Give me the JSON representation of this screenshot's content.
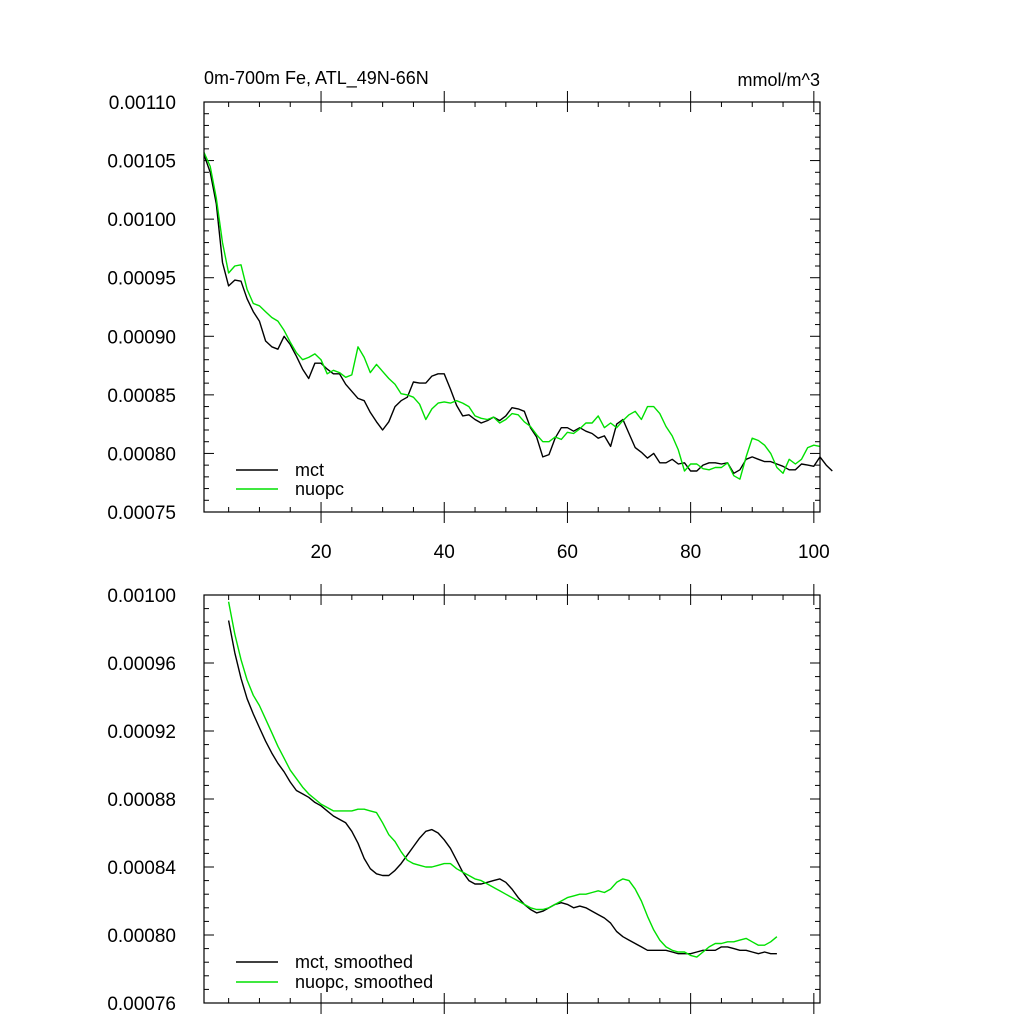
{
  "chart_data": [
    {
      "type": "line",
      "title": "0m-700m Fe, ATL_49N-66N",
      "units": "mmol/m^3",
      "xlabel": "",
      "ylabel": "",
      "xlim": [
        1,
        101
      ],
      "ylim": [
        0.00075,
        0.0011
      ],
      "x_ticks": [
        20,
        40,
        60,
        80,
        100
      ],
      "x_tick_labels": [
        "20",
        "40",
        "60",
        "80",
        "100"
      ],
      "y_ticks": [
        0.00075,
        0.0008,
        0.00085,
        0.0009,
        0.00095,
        0.001,
        0.00105,
        0.0011
      ],
      "y_tick_labels": [
        "0.00075",
        "0.00080",
        "0.00085",
        "0.00090",
        "0.00095",
        "0.00100",
        "0.00105",
        "0.00110"
      ],
      "legend_position": "bottom-left",
      "series": [
        {
          "name": "mct",
          "color": "#000000",
          "x_start": 1,
          "values": [
            0.001055,
            0.00104,
            0.001013,
            0.000963,
            0.000943,
            0.000948,
            0.000947,
            0.000932,
            0.000921,
            0.000913,
            0.000896,
            0.000891,
            0.000889,
            0.0009,
            0.000893,
            0.000883,
            0.000872,
            0.000864,
            0.000877,
            0.000877,
            0.000872,
            0.000868,
            0.000868,
            0.000859,
            0.000853,
            0.000847,
            0.000845,
            0.000835,
            0.000827,
            0.00082,
            0.000827,
            0.00084,
            0.000845,
            0.000848,
            0.000861,
            0.00086,
            0.00086,
            0.000866,
            0.000868,
            0.000868,
            0.000855,
            0.000841,
            0.000832,
            0.000833,
            0.000829,
            0.000826,
            0.000828,
            0.000831,
            0.000828,
            0.000832,
            0.000839,
            0.000838,
            0.000836,
            0.000822,
            0.000814,
            0.000797,
            0.000799,
            0.000813,
            0.000822,
            0.000822,
            0.000819,
            0.000822,
            0.000819,
            0.000817,
            0.000813,
            0.000815,
            0.000806,
            0.000825,
            0.000829,
            0.000817,
            0.000805,
            0.000801,
            0.000796,
            0.0008,
            0.000792,
            0.000792,
            0.000795,
            0.000791,
            0.000792,
            0.000785,
            0.000785,
            0.00079,
            0.000792,
            0.000792,
            0.000791,
            0.000792,
            0.000783,
            0.000786,
            0.000795,
            0.000797,
            0.000795,
            0.000793,
            0.000793,
            0.000791,
            0.000789,
            0.000786,
            0.000786,
            0.000791,
            0.00079,
            0.000789,
            0.000797,
            0.00079,
            0.000785
          ]
        },
        {
          "name": "nuopc",
          "color": "#00e000",
          "x_start": 1,
          "values": [
            0.001057,
            0.001045,
            0.001018,
            0.00098,
            0.000954,
            0.00096,
            0.000961,
            0.00094,
            0.000928,
            0.000926,
            0.000921,
            0.000916,
            0.000913,
            0.000905,
            0.000895,
            0.000886,
            0.00088,
            0.000882,
            0.000885,
            0.00088,
            0.000868,
            0.000871,
            0.000869,
            0.000865,
            0.000867,
            0.000891,
            0.000882,
            0.000869,
            0.000876,
            0.00087,
            0.000864,
            0.000859,
            0.000851,
            0.00085,
            0.000848,
            0.000842,
            0.000829,
            0.000838,
            0.000843,
            0.000844,
            0.000843,
            0.000845,
            0.000843,
            0.00084,
            0.000832,
            0.00083,
            0.000829,
            0.000831,
            0.000826,
            0.000829,
            0.000834,
            0.000833,
            0.000827,
            0.000823,
            0.000816,
            0.00081,
            0.00081,
            0.000814,
            0.000812,
            0.000818,
            0.000817,
            0.000821,
            0.000826,
            0.000826,
            0.000832,
            0.000822,
            0.000826,
            0.000822,
            0.000828,
            0.000833,
            0.000836,
            0.000829,
            0.00084,
            0.00084,
            0.000834,
            0.000823,
            0.000815,
            0.000803,
            0.000785,
            0.000791,
            0.000791,
            0.000787,
            0.000786,
            0.000788,
            0.000788,
            0.000792,
            0.000781,
            0.000778,
            0.000797,
            0.000813,
            0.000811,
            0.000807,
            0.0008,
            0.000788,
            0.000783,
            0.000795,
            0.000791,
            0.000795,
            0.000805,
            0.000807,
            0.000806
          ]
        }
      ]
    },
    {
      "type": "line",
      "title": "",
      "xlabel": "",
      "ylabel": "",
      "xlim": [
        1,
        101
      ],
      "ylim": [
        0.00076,
        0.001
      ],
      "x_ticks": [
        20,
        40,
        60,
        80,
        100
      ],
      "y_ticks": [
        0.00076,
        0.0008,
        0.00084,
        0.00088,
        0.00092,
        0.00096,
        0.001
      ],
      "y_tick_labels": [
        "0.00076",
        "0.00080",
        "0.00084",
        "0.00088",
        "0.00092",
        "0.00096",
        "0.00100"
      ],
      "legend_position": "bottom-left",
      "series": [
        {
          "name": "mct, smoothed",
          "color": "#000000",
          "x_start": 5,
          "values": [
            0.000985,
            0.000966,
            0.000951,
            0.000939,
            0.00093,
            0.000922,
            0.000914,
            0.000907,
            0.000901,
            0.000896,
            0.00089,
            0.000885,
            0.000883,
            0.000881,
            0.000878,
            0.000876,
            0.000873,
            0.00087,
            0.000868,
            0.000866,
            0.000861,
            0.000854,
            0.000845,
            0.000839,
            0.000836,
            0.000835,
            0.000835,
            0.000838,
            0.000842,
            0.000847,
            0.000852,
            0.000857,
            0.000861,
            0.000862,
            0.00086,
            0.000856,
            0.000851,
            0.000844,
            0.000837,
            0.000832,
            0.00083,
            0.00083,
            0.000831,
            0.000832,
            0.000833,
            0.000831,
            0.000827,
            0.000822,
            0.000818,
            0.000815,
            0.000813,
            0.000814,
            0.000816,
            0.000818,
            0.000819,
            0.000818,
            0.000816,
            0.000817,
            0.000816,
            0.000814,
            0.000812,
            0.00081,
            0.000807,
            0.000802,
            0.000799,
            0.000797,
            0.000795,
            0.000793,
            0.000791,
            0.000791,
            0.000791,
            0.000791,
            0.00079,
            0.000789,
            0.000789,
            0.000789,
            0.00079,
            0.000791,
            0.000791,
            0.000791,
            0.000793,
            0.000793,
            0.000792,
            0.000791,
            0.000791,
            0.00079,
            0.000789,
            0.00079,
            0.000789,
            0.000789
          ]
        },
        {
          "name": "nuopc, smoothed",
          "color": "#00e000",
          "x_start": 5,
          "values": [
            0.000996,
            0.000977,
            0.000962,
            0.00095,
            0.000941,
            0.000935,
            0.000927,
            0.000919,
            0.000911,
            0.000904,
            0.000897,
            0.000892,
            0.000887,
            0.000883,
            0.00088,
            0.000877,
            0.000875,
            0.000873,
            0.000873,
            0.000873,
            0.000873,
            0.000874,
            0.000874,
            0.000873,
            0.000872,
            0.000866,
            0.000859,
            0.000855,
            0.000849,
            0.000844,
            0.000842,
            0.000841,
            0.00084,
            0.00084,
            0.000841,
            0.000842,
            0.000842,
            0.000839,
            0.000837,
            0.000835,
            0.000833,
            0.000832,
            0.00083,
            0.000828,
            0.000826,
            0.000824,
            0.000822,
            0.00082,
            0.000818,
            0.000816,
            0.000815,
            0.000815,
            0.000816,
            0.000818,
            0.00082,
            0.000822,
            0.000823,
            0.000824,
            0.000824,
            0.000825,
            0.000826,
            0.000825,
            0.000827,
            0.000831,
            0.000833,
            0.000832,
            0.000827,
            0.00082,
            0.000811,
            0.000803,
            0.000797,
            0.000793,
            0.000791,
            0.00079,
            0.00079,
            0.000788,
            0.000787,
            0.00079,
            0.000793,
            0.000795,
            0.000795,
            0.000796,
            0.000796,
            0.000797,
            0.000798,
            0.000796,
            0.000794,
            0.000794,
            0.000796,
            0.000799
          ]
        }
      ]
    }
  ]
}
